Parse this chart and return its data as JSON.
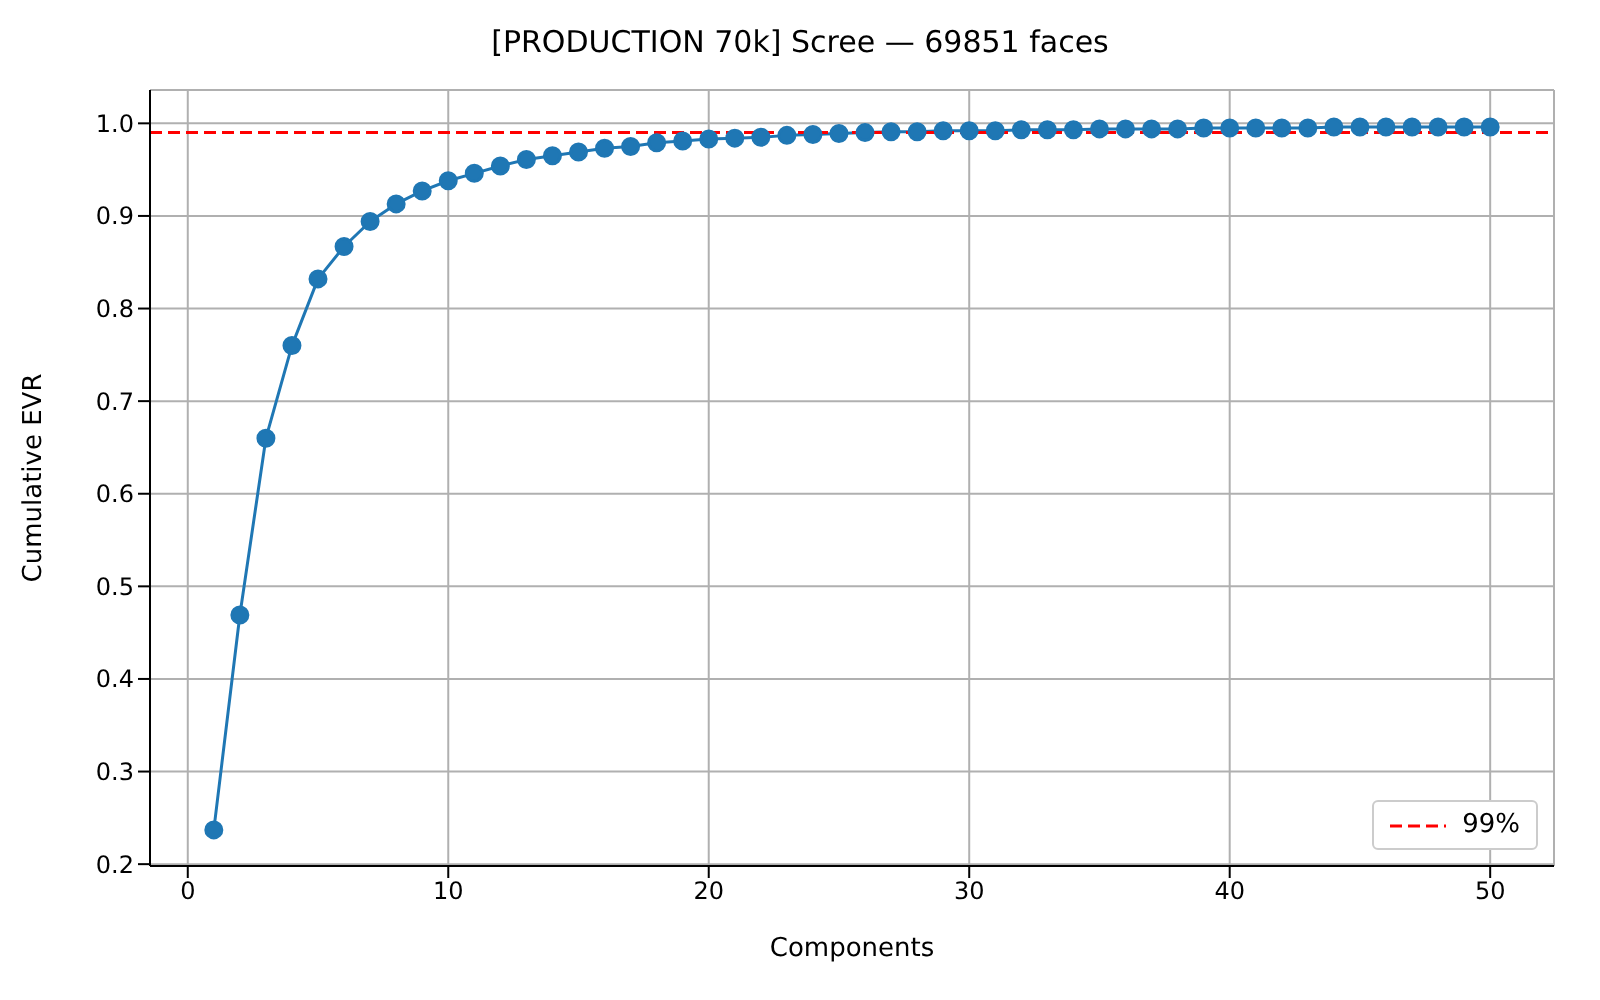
{
  "chart_data": {
    "type": "line",
    "title": "[PRODUCTION 70k] Scree — 69851 faces",
    "xlabel": "Components",
    "ylabel": "Cumulative EVR",
    "x": [
      1,
      2,
      3,
      4,
      5,
      6,
      7,
      8,
      9,
      10,
      11,
      12,
      13,
      14,
      15,
      16,
      17,
      18,
      19,
      20,
      21,
      22,
      23,
      24,
      25,
      26,
      27,
      28,
      29,
      30,
      31,
      32,
      33,
      34,
      35,
      36,
      37,
      38,
      39,
      40,
      41,
      42,
      43,
      44,
      45,
      46,
      47,
      48,
      49,
      50
    ],
    "series": [
      {
        "color": "#1f77b4",
        "values": [
          0.237,
          0.469,
          0.66,
          0.76,
          0.832,
          0.867,
          0.894,
          0.913,
          0.927,
          0.938,
          0.946,
          0.954,
          0.961,
          0.965,
          0.969,
          0.973,
          0.975,
          0.979,
          0.981,
          0.983,
          0.984,
          0.985,
          0.987,
          0.988,
          0.989,
          0.99,
          0.991,
          0.991,
          0.992,
          0.992,
          0.992,
          0.993,
          0.993,
          0.993,
          0.994,
          0.994,
          0.994,
          0.994,
          0.995,
          0.995,
          0.995,
          0.995,
          0.995,
          0.996,
          0.996,
          0.996,
          0.996,
          0.996,
          0.996,
          0.996
        ]
      }
    ],
    "xlim": [
      -1.45,
      52.45
    ],
    "xticks": [
      0,
      10,
      20,
      30,
      40,
      50
    ],
    "ylim": [
      0.198,
      1.036
    ],
    "yticks": [
      0.2,
      0.3,
      0.4,
      0.5,
      0.6,
      0.7,
      0.8,
      0.9,
      {
        "value": 1,
        "label": "1.0"
      }
    ],
    "ref_lines": [
      {
        "axis": "y",
        "value": 0.99,
        "label": "99%",
        "color": "#ff0000",
        "line_style": "dashed"
      }
    ],
    "grid": true,
    "legend": "bottom right",
    "marker": "circle",
    "line_style": "solid"
  }
}
